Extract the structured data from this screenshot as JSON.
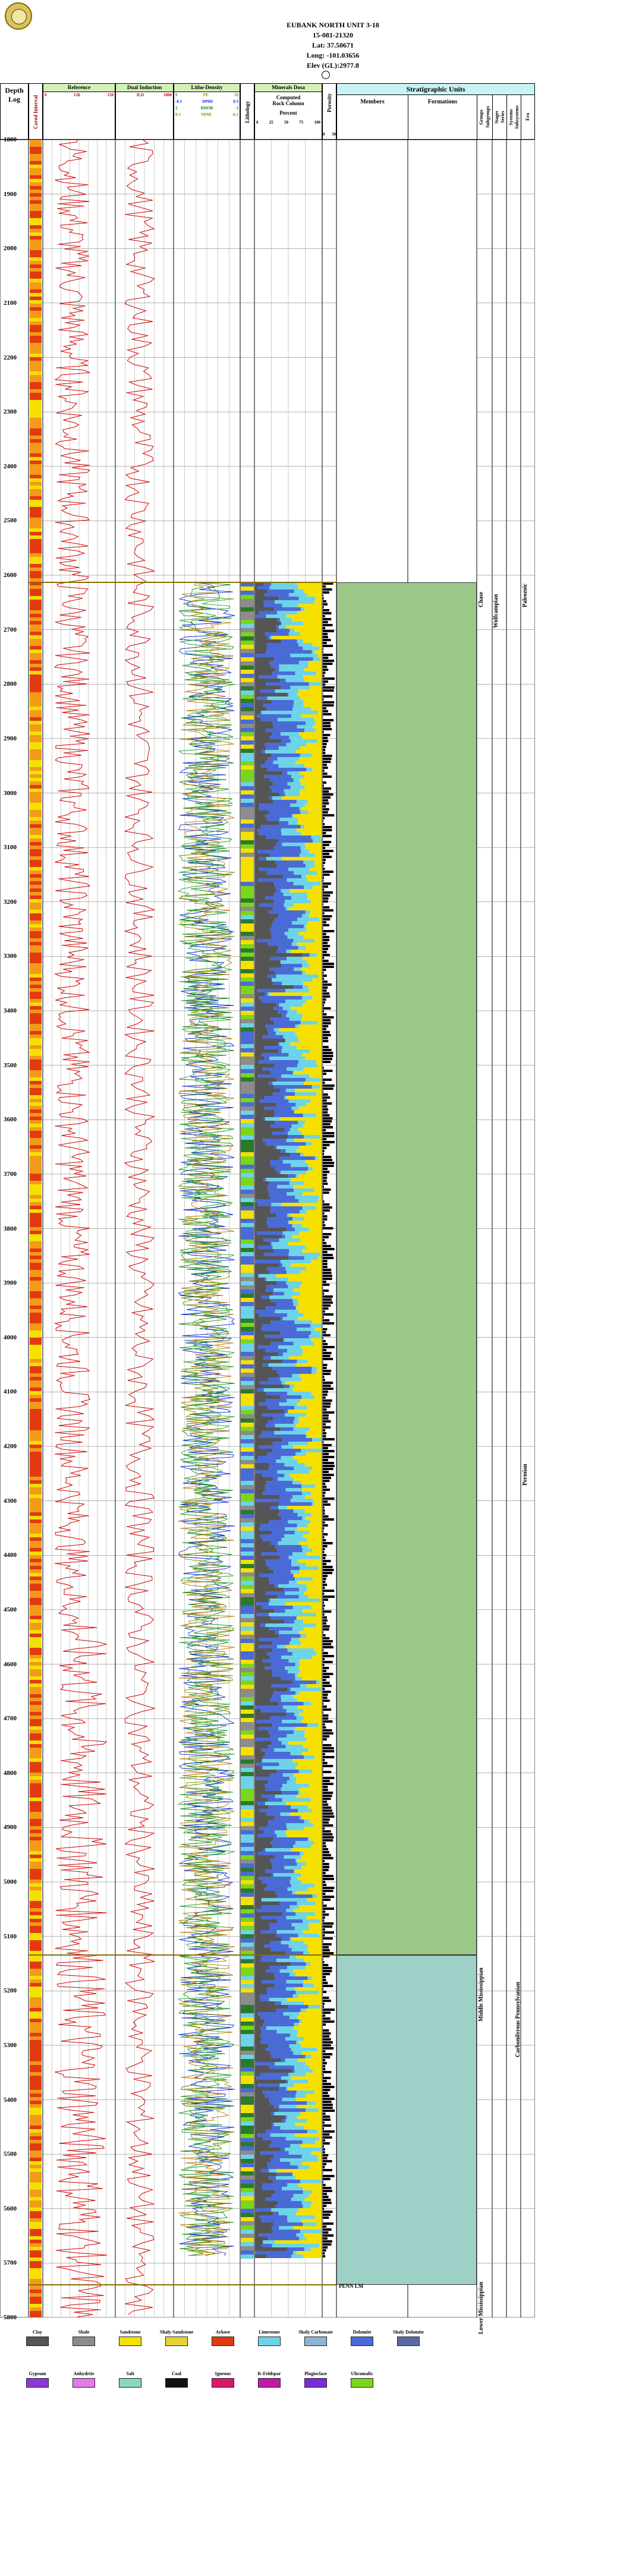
{
  "header": {
    "well_name": "EUBANK NORTH UNIT 3-18",
    "api": "15-081-21320",
    "lat": "Lat: 37.50671",
    "long": "Long: -101.03656",
    "elev": "Elev (GL):2977.8"
  },
  "columns": {
    "depth": "Depth",
    "log": "Log",
    "cored": "Cored Interval",
    "reference": "Reference",
    "reference_scale_left": "0",
    "reference_curve": "GR",
    "reference_scale_right": "150",
    "dual_induction": "Dual Induction",
    "dual_curve": "ILD",
    "dual_scale_right": "1000",
    "litho_density": "Litho-Density",
    "litho_curves": [
      {
        "left": "0",
        "name": "PE",
        "right": "10"
      },
      {
        "left": "-0.1",
        "name": "DPHI",
        "right": "0.3"
      },
      {
        "left": "2",
        "name": "RHOB",
        "right": "3"
      },
      {
        "left": "0.3",
        "name": "NPHI",
        "right": "-0.1"
      }
    ],
    "lithology": "Lithology",
    "minerals": "Minerals Dosa",
    "minerals_sub": [
      "Computed",
      "Rock Column"
    ],
    "percent": "Percent",
    "percent_ticks": [
      "0",
      "25",
      "50",
      "75",
      "100"
    ],
    "porosity": "Porosity",
    "porosity_ticks": [
      "0",
      "30"
    ],
    "strat_units": "Stratigraphic Units",
    "members": "Members",
    "formations": "Formations",
    "groups": [
      "Groups",
      "Subgroups"
    ],
    "stages": [
      "Stages",
      "Series"
    ],
    "systems": [
      "Systems",
      "Subsystems"
    ],
    "era": "Era"
  },
  "depth_ticks": [
    "1800",
    "1900",
    "2000",
    "2100",
    "2200",
    "2300",
    "2400",
    "2500",
    "2600",
    "2700",
    "2800",
    "2900",
    "3000",
    "3100",
    "3200",
    "3300",
    "3400",
    "3500",
    "3600",
    "3700",
    "3800",
    "3900",
    "4000",
    "4100",
    "4200",
    "4300",
    "4400",
    "4500",
    "4600",
    "4700",
    "4800",
    "4900",
    "5000",
    "5100",
    "5200",
    "5300",
    "5400",
    "5500",
    "5600",
    "5700",
    "5800"
  ],
  "strat": {
    "chase": "Chase",
    "wolfcampian": "Wolfcampian",
    "permian": "Permian",
    "middle_miss": "Middle Mississippian",
    "upper_carb": "Carboniferous Pennsylvanian",
    "lower_miss": "Lower Mississippian",
    "penn_lm": "PENN LM",
    "paleozoic_top": "Paleozoic"
  },
  "legend": [
    {
      "name": "Clay",
      "color": "#555555"
    },
    {
      "name": "Shale",
      "color": "#8c8c8c"
    },
    {
      "name": "Sandstone",
      "color": "#f5e000"
    },
    {
      "name": "Shaly Sandstone",
      "color": "#e4d23a"
    },
    {
      "name": "Arkose",
      "color": "#e23a10"
    },
    {
      "name": "Limestone",
      "color": "#6dd3e8"
    },
    {
      "name": "Shaly Carbonate",
      "color": "#8fb3d6"
    },
    {
      "name": "Dolomite",
      "color": "#4a6bd6"
    },
    {
      "name": "Shaly Dolomite",
      "color": "#5a6aa8"
    },
    {
      "name": "Gypsum",
      "color": "#8b3ad6"
    },
    {
      "name": "Anhydrite",
      "color": "#e27ae8"
    },
    {
      "name": "Salt",
      "color": "#8ad6c2"
    },
    {
      "name": "Coal",
      "color": "#111111"
    },
    {
      "name": "Igneous",
      "color": "#d61a6a"
    },
    {
      "name": "K-Feldspar",
      "color": "#c21aa8"
    },
    {
      "name": "Plagioclase",
      "color": "#7a2ad6"
    },
    {
      "name": "Ultramafic",
      "color": "#7ad61a"
    }
  ]
}
